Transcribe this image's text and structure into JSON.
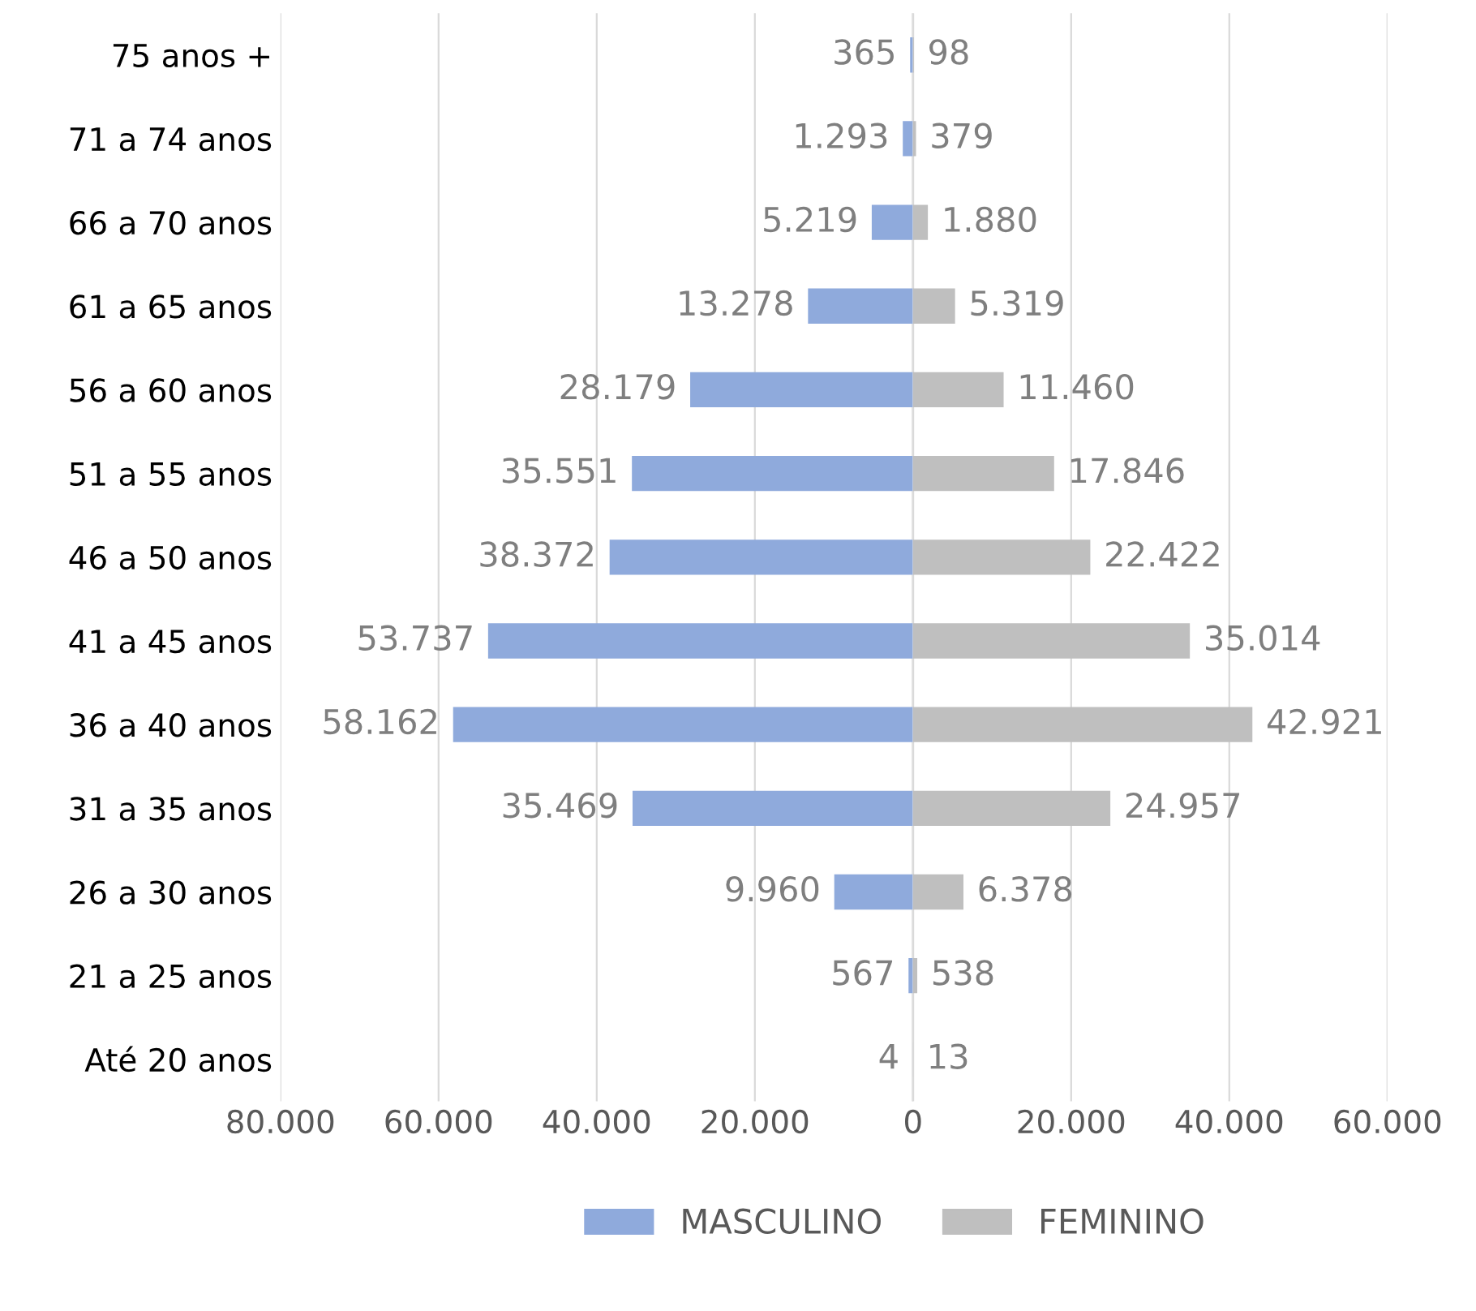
{
  "chart_data": [
    {
      "type": "bar",
      "orientation": "horizontal",
      "categories": [
        "75 anos +",
        "71 a 74 anos",
        "66 a 70 anos",
        "61 a 65 anos",
        "56 a 60 anos",
        "51 a 55 anos",
        "46 a 50 anos",
        "41 a 45 anos",
        "36 a 40 anos",
        "31 a 35 anos",
        "26 a 30 anos",
        "21 a 25 anos",
        "Até 20 anos"
      ],
      "series": [
        {
          "name": "MASCULINO",
          "color": "#8faadc",
          "values": [
            365,
            1293,
            5219,
            13278,
            28179,
            35551,
            38372,
            53737,
            58162,
            35469,
            9960,
            567,
            4
          ],
          "value_labels": [
            "365",
            "1.293",
            "5.219",
            "13.278",
            "28.179",
            "35.551",
            "38.372",
            "53.737",
            "58.162",
            "35.469",
            "9.960",
            "567",
            "4"
          ]
        }
      ],
      "xlim": [
        80000,
        0
      ],
      "xticks": [
        {
          "value": 80000,
          "label": "80.000"
        },
        {
          "value": 60000,
          "label": "60.000"
        },
        {
          "value": 40000,
          "label": "40.000"
        },
        {
          "value": 20000,
          "label": "20.000"
        },
        0
      ],
      "grid": "x",
      "legend": "bottom right"
    },
    {
      "type": "bar",
      "orientation": "horizontal",
      "categories": [
        null,
        null,
        null,
        null,
        null,
        null,
        null,
        null,
        null,
        null,
        null,
        null,
        null
      ],
      "series": [
        {
          "name": "FEMININO",
          "color": "#bfbfbf",
          "values": [
            98,
            379,
            1880,
            5319,
            11460,
            17846,
            22422,
            35014,
            42921,
            24957,
            6378,
            538,
            13
          ],
          "value_labels": [
            "98",
            "379",
            "1.880",
            "5.319",
            "11.460",
            "17.846",
            "22.422",
            "35.014",
            "42.921",
            "24.957",
            "6.378",
            "538",
            "13"
          ]
        }
      ],
      "xlim": [
        0,
        60000
      ],
      "xticks": [
        {
          "value": 20000,
          "label": "20.000"
        },
        {
          "value": 40000,
          "label": "40.000"
        },
        {
          "value": 60000,
          "label": "60.000"
        }
      ],
      "tick_labels": "x",
      "grid": "x",
      "legend": "bottom left"
    }
  ]
}
